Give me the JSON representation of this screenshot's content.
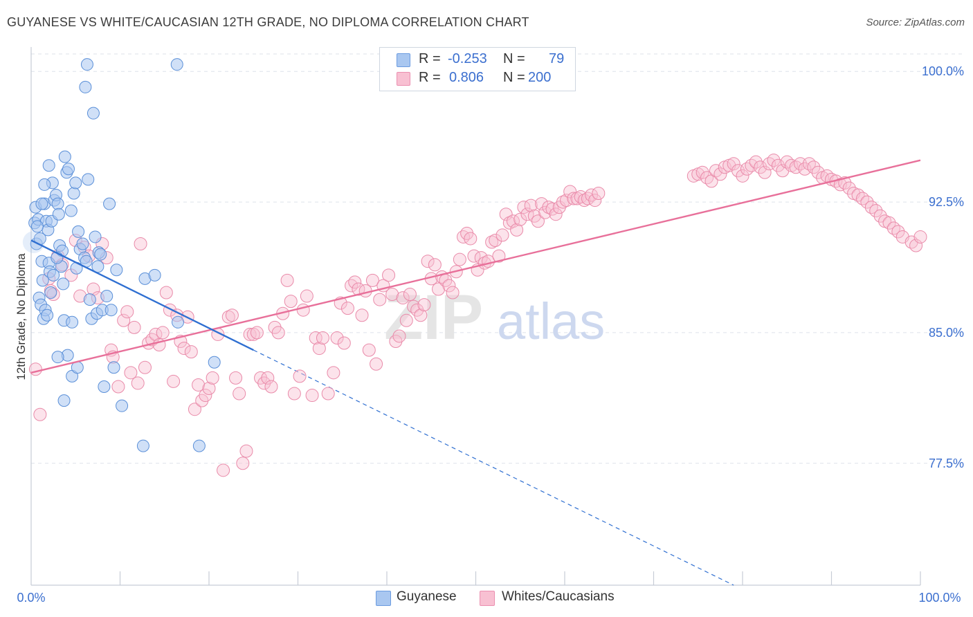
{
  "title": "GUYANESE VS WHITE/CAUCASIAN 12TH GRADE, NO DIPLOMA CORRELATION CHART",
  "source": "Source: ZipAtlas.com",
  "watermark": {
    "zip": "ZIP",
    "atlas": "atlas"
  },
  "legend": {
    "rows": [
      {
        "r_label": "R =",
        "r_value": "-0.253",
        "n_label": "N =",
        "n_value": "79",
        "color": "#a9c7f0",
        "border": "#6b9be0"
      },
      {
        "r_label": "R =",
        "r_value": "0.806",
        "n_label": "N =",
        "n_value": "200",
        "color": "#f8c0d2",
        "border": "#eb8fb0"
      }
    ]
  },
  "bottom_legend": {
    "items": [
      "Guyanese",
      "Whites/Caucasians"
    ]
  },
  "colors": {
    "blue_fill": "#a9c7f0",
    "blue_stroke": "#5a8fd8",
    "blue_line": "#2f6fd1",
    "pink_fill": "#f8c0d2",
    "pink_stroke": "#e98aa9",
    "pink_line": "#e8709a",
    "tick_label": "#3b6fcf",
    "grid": "#dde2ea"
  },
  "chart_data": {
    "type": "scatter",
    "title": "GUYANESE VS WHITE/CAUCASIAN 12TH GRADE, NO DIPLOMA CORRELATION CHART",
    "xlabel": "",
    "ylabel": "12th Grade, No Diploma",
    "xlim": [
      0,
      100
    ],
    "ylim": [
      70.5,
      101.4
    ],
    "x_tick_labels": [
      "0.0%",
      "100.0%"
    ],
    "y_ticks": [
      77.5,
      85.0,
      92.5,
      100.0
    ],
    "y_tick_labels": [
      "77.5%",
      "85.0%",
      "92.5%",
      "100.0%"
    ],
    "grid": true,
    "legend_position": "top-center",
    "series": [
      {
        "name": "Guyanese",
        "color": "#a9c7f0",
        "trend": {
          "x": [
            0,
            25
          ],
          "y": [
            90.3,
            84.0
          ],
          "dashed_extension": {
            "x": [
              25,
              79
            ],
            "y": [
              84.0,
              70.5
            ]
          }
        },
        "points": [
          [
            0.4,
            91.3
          ],
          [
            0.6,
            90.1
          ],
          [
            0.5,
            92.2
          ],
          [
            0.8,
            91.5
          ],
          [
            1.0,
            90.4
          ],
          [
            1.2,
            89.1
          ],
          [
            1.3,
            88.0
          ],
          [
            1.5,
            92.4
          ],
          [
            1.7,
            91.4
          ],
          [
            1.9,
            90.9
          ],
          [
            2.0,
            89.0
          ],
          [
            2.1,
            88.5
          ],
          [
            2.2,
            87.3
          ],
          [
            2.4,
            93.6
          ],
          [
            2.6,
            92.6
          ],
          [
            2.8,
            92.9
          ],
          [
            3.0,
            92.4
          ],
          [
            3.2,
            90.0
          ],
          [
            3.4,
            88.8
          ],
          [
            3.6,
            87.8
          ],
          [
            0.9,
            87.0
          ],
          [
            1.1,
            86.6
          ],
          [
            1.4,
            85.8
          ],
          [
            1.6,
            86.3
          ],
          [
            1.8,
            86.0
          ],
          [
            2.0,
            94.6
          ],
          [
            2.3,
            91.4
          ],
          [
            2.5,
            88.3
          ],
          [
            3.1,
            91.8
          ],
          [
            3.5,
            89.7
          ],
          [
            3.8,
            95.1
          ],
          [
            3.7,
            85.7
          ],
          [
            4.0,
            94.2
          ],
          [
            4.2,
            94.4
          ],
          [
            4.5,
            92.0
          ],
          [
            4.6,
            85.6
          ],
          [
            4.8,
            93.0
          ],
          [
            5.0,
            93.6
          ],
          [
            5.1,
            88.7
          ],
          [
            5.3,
            90.8
          ],
          [
            5.5,
            89.8
          ],
          [
            5.8,
            90.1
          ],
          [
            6.0,
            89.3
          ],
          [
            6.2,
            89.1
          ],
          [
            6.4,
            93.8
          ],
          [
            6.6,
            86.9
          ],
          [
            6.8,
            85.8
          ],
          [
            7.0,
            97.6
          ],
          [
            7.2,
            90.5
          ],
          [
            7.4,
            86.1
          ],
          [
            7.6,
            89.6
          ],
          [
            6.3,
            100.4
          ],
          [
            6.1,
            99.1
          ],
          [
            16.4,
            100.4
          ],
          [
            7.5,
            88.8
          ],
          [
            7.8,
            89.5
          ],
          [
            8.0,
            86.3
          ],
          [
            8.2,
            81.9
          ],
          [
            8.5,
            87.1
          ],
          [
            8.8,
            92.4
          ],
          [
            9.0,
            86.3
          ],
          [
            9.3,
            83.0
          ],
          [
            9.6,
            88.6
          ],
          [
            10.2,
            80.8
          ],
          [
            12.6,
            78.5
          ],
          [
            12.8,
            88.1
          ],
          [
            13.9,
            88.3
          ],
          [
            16.5,
            85.6
          ],
          [
            18.9,
            78.5
          ],
          [
            20.6,
            83.3
          ],
          [
            4.6,
            82.5
          ],
          [
            4.1,
            83.7
          ],
          [
            3.7,
            81.1
          ],
          [
            0.7,
            91.1
          ],
          [
            1.2,
            92.4
          ],
          [
            2.9,
            89.3
          ],
          [
            5.2,
            83.0
          ],
          [
            3.0,
            83.6
          ],
          [
            1.5,
            93.5
          ]
        ]
      },
      {
        "name": "Whites/Caucasians",
        "color": "#f8c0d2",
        "trend": {
          "x": [
            0,
            100
          ],
          "y": [
            82.7,
            94.9
          ]
        },
        "points": [
          [
            0.5,
            82.9
          ],
          [
            1.0,
            80.3
          ],
          [
            2.0,
            88.1
          ],
          [
            2.2,
            87.4
          ],
          [
            2.5,
            87.2
          ],
          [
            3.0,
            89.4
          ],
          [
            3.5,
            88.9
          ],
          [
            4.5,
            88.3
          ],
          [
            5.0,
            90.3
          ],
          [
            5.5,
            87.1
          ],
          [
            6.0,
            89.9
          ],
          [
            6.5,
            89.4
          ],
          [
            7.0,
            87.5
          ],
          [
            7.5,
            87.0
          ],
          [
            8.0,
            90.1
          ],
          [
            8.5,
            89.3
          ],
          [
            9.0,
            84.0
          ],
          [
            9.2,
            83.6
          ],
          [
            9.8,
            81.9
          ],
          [
            10.4,
            85.7
          ],
          [
            10.8,
            86.2
          ],
          [
            11.2,
            82.7
          ],
          [
            11.6,
            85.3
          ],
          [
            12.0,
            82.1
          ],
          [
            12.3,
            90.1
          ],
          [
            12.8,
            83.0
          ],
          [
            13.2,
            84.4
          ],
          [
            13.6,
            84.6
          ],
          [
            14.0,
            84.9
          ],
          [
            14.4,
            84.3
          ],
          [
            14.8,
            85.0
          ],
          [
            15.2,
            87.3
          ],
          [
            15.6,
            86.3
          ],
          [
            16.0,
            82.2
          ],
          [
            16.4,
            86.0
          ],
          [
            16.8,
            84.5
          ],
          [
            17.2,
            84.1
          ],
          [
            17.6,
            85.9
          ],
          [
            18.0,
            83.9
          ],
          [
            18.4,
            80.6
          ],
          [
            18.8,
            82.0
          ],
          [
            19.2,
            81.1
          ],
          [
            19.6,
            81.4
          ],
          [
            20.0,
            81.8
          ],
          [
            20.4,
            82.4
          ],
          [
            21.0,
            84.9
          ],
          [
            21.6,
            77.1
          ],
          [
            22.2,
            85.9
          ],
          [
            22.6,
            86.0
          ],
          [
            23.0,
            82.4
          ],
          [
            23.4,
            81.5
          ],
          [
            23.8,
            77.5
          ],
          [
            24.2,
            78.2
          ],
          [
            24.6,
            84.9
          ],
          [
            25.0,
            84.9
          ],
          [
            25.4,
            85.0
          ],
          [
            25.8,
            82.4
          ],
          [
            26.2,
            82.1
          ],
          [
            26.6,
            82.4
          ],
          [
            27.0,
            81.9
          ],
          [
            27.4,
            85.3
          ],
          [
            27.8,
            85.0
          ],
          [
            28.3,
            86.1
          ],
          [
            28.8,
            88.0
          ],
          [
            29.2,
            86.8
          ],
          [
            29.6,
            81.5
          ],
          [
            30.2,
            82.5
          ],
          [
            30.6,
            86.3
          ],
          [
            31.0,
            87.1
          ],
          [
            31.6,
            81.4
          ],
          [
            32.0,
            84.7
          ],
          [
            32.4,
            84.1
          ],
          [
            32.8,
            84.7
          ],
          [
            33.4,
            81.5
          ],
          [
            34.0,
            82.7
          ],
          [
            34.4,
            84.7
          ],
          [
            34.8,
            86.7
          ],
          [
            35.2,
            84.4
          ],
          [
            35.6,
            86.4
          ],
          [
            36.0,
            87.7
          ],
          [
            36.4,
            87.9
          ],
          [
            36.8,
            87.5
          ],
          [
            37.2,
            86.0
          ],
          [
            37.6,
            87.4
          ],
          [
            38.0,
            84.0
          ],
          [
            38.4,
            88.0
          ],
          [
            38.8,
            83.2
          ],
          [
            39.2,
            86.9
          ],
          [
            39.6,
            87.7
          ],
          [
            40.2,
            88.3
          ],
          [
            40.6,
            87.2
          ],
          [
            41.0,
            84.5
          ],
          [
            41.4,
            84.8
          ],
          [
            41.8,
            87.0
          ],
          [
            42.2,
            85.7
          ],
          [
            42.6,
            87.2
          ],
          [
            43.0,
            86.5
          ],
          [
            43.4,
            86.3
          ],
          [
            43.8,
            86.0
          ],
          [
            44.2,
            86.6
          ],
          [
            44.6,
            89.1
          ],
          [
            45.0,
            88.1
          ],
          [
            45.4,
            88.9
          ],
          [
            45.8,
            87.5
          ],
          [
            46.2,
            88.2
          ],
          [
            46.6,
            88.0
          ],
          [
            47.0,
            87.7
          ],
          [
            47.4,
            87.3
          ],
          [
            47.8,
            88.5
          ],
          [
            48.2,
            89.2
          ],
          [
            48.6,
            90.5
          ],
          [
            49.0,
            90.7
          ],
          [
            49.4,
            90.4
          ],
          [
            49.8,
            89.4
          ],
          [
            50.2,
            88.6
          ],
          [
            50.6,
            89.3
          ],
          [
            51.0,
            89.0
          ],
          [
            51.4,
            89.1
          ],
          [
            51.8,
            90.2
          ],
          [
            52.2,
            90.3
          ],
          [
            52.6,
            89.4
          ],
          [
            53.0,
            90.6
          ],
          [
            53.4,
            91.8
          ],
          [
            53.8,
            91.3
          ],
          [
            54.2,
            91.4
          ],
          [
            54.6,
            90.9
          ],
          [
            55.0,
            91.5
          ],
          [
            55.4,
            92.2
          ],
          [
            55.8,
            91.8
          ],
          [
            56.2,
            92.3
          ],
          [
            56.6,
            91.7
          ],
          [
            57.0,
            91.4
          ],
          [
            57.4,
            92.4
          ],
          [
            57.8,
            91.9
          ],
          [
            58.2,
            92.2
          ],
          [
            58.6,
            92.1
          ],
          [
            59.0,
            91.8
          ],
          [
            59.4,
            92.2
          ],
          [
            59.8,
            92.5
          ],
          [
            60.2,
            92.6
          ],
          [
            60.6,
            93.1
          ],
          [
            61.0,
            92.7
          ],
          [
            61.4,
            92.7
          ],
          [
            61.8,
            92.8
          ],
          [
            62.2,
            92.6
          ],
          [
            62.6,
            92.7
          ],
          [
            63.0,
            92.9
          ],
          [
            63.4,
            92.6
          ],
          [
            63.8,
            93.0
          ],
          [
            74.5,
            94.0
          ],
          [
            75.0,
            94.1
          ],
          [
            75.5,
            94.2
          ],
          [
            76.0,
            93.9
          ],
          [
            76.5,
            93.7
          ],
          [
            77.0,
            94.3
          ],
          [
            77.5,
            94.1
          ],
          [
            78.0,
            94.5
          ],
          [
            78.5,
            94.6
          ],
          [
            79.0,
            94.7
          ],
          [
            79.5,
            94.3
          ],
          [
            80.0,
            94.0
          ],
          [
            80.5,
            94.4
          ],
          [
            81.0,
            94.6
          ],
          [
            81.5,
            94.8
          ],
          [
            82.0,
            94.5
          ],
          [
            82.5,
            94.2
          ],
          [
            83.0,
            94.7
          ],
          [
            83.5,
            94.9
          ],
          [
            84.0,
            94.6
          ],
          [
            84.5,
            94.3
          ],
          [
            85.0,
            94.8
          ],
          [
            85.5,
            94.6
          ],
          [
            86.0,
            94.5
          ],
          [
            86.5,
            94.7
          ],
          [
            87.0,
            94.4
          ],
          [
            87.5,
            94.7
          ],
          [
            88.0,
            94.5
          ],
          [
            88.5,
            94.2
          ],
          [
            89.0,
            93.9
          ],
          [
            89.5,
            94.0
          ],
          [
            90.0,
            93.8
          ],
          [
            90.5,
            93.7
          ],
          [
            91.0,
            93.5
          ],
          [
            91.5,
            93.6
          ],
          [
            92.0,
            93.3
          ],
          [
            92.5,
            93.0
          ],
          [
            93.0,
            92.9
          ],
          [
            93.5,
            92.7
          ],
          [
            94.0,
            92.5
          ],
          [
            94.5,
            92.2
          ],
          [
            95.0,
            92.0
          ],
          [
            95.5,
            91.7
          ],
          [
            96.0,
            91.4
          ],
          [
            96.5,
            91.3
          ],
          [
            97.0,
            91.0
          ],
          [
            97.5,
            90.8
          ],
          [
            98.0,
            90.5
          ],
          [
            99.0,
            90.2
          ],
          [
            99.5,
            90.0
          ],
          [
            100.0,
            90.5
          ]
        ]
      }
    ]
  }
}
